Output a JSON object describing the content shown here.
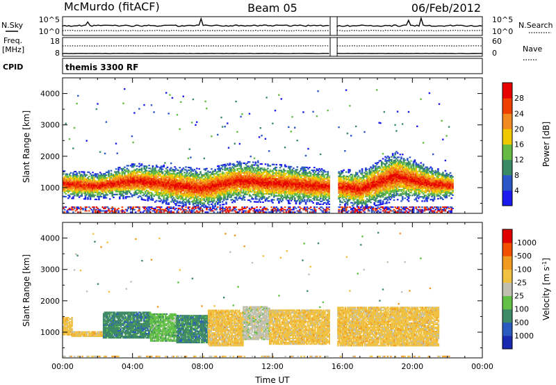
{
  "header": {
    "station": "McMurdo (fitACF)",
    "beam": "Beam 05",
    "date": "06/Feb/2012"
  },
  "top_panels": {
    "nsky_label": "N.Sky",
    "nsearch_label": "N.Search",
    "nsky_ticks": [
      "10^5",
      "10^0"
    ],
    "nsearch_ticks": [
      "10^5",
      "10^0"
    ],
    "freq_label_1": "Freq.",
    "freq_label_2": "[MHz]",
    "freq_ticks": [
      "18",
      "8"
    ],
    "nave_label": "Nave",
    "nave_ticks": [
      "60",
      "0"
    ],
    "cpid_label": "CPID",
    "cpid_value": "themis 3300 RF"
  },
  "chart_data": [
    {
      "type": "heatmap",
      "title": "",
      "xlabel": "Time UT",
      "ylabel": "Slant Range [km]",
      "x_ticks": [
        "00:00",
        "04:00",
        "08:00",
        "12:00",
        "16:00",
        "20:00",
        "00:00"
      ],
      "xlim": [
        0,
        24
      ],
      "y_ticks": [
        1000,
        2000,
        3000,
        4000
      ],
      "ylim": [
        180,
        4500
      ],
      "data_gap_hours": [
        15.3,
        15.7
      ],
      "colorbar": {
        "label": "Power [dB]",
        "ticks": [
          "4",
          "8",
          "12",
          "16",
          "20",
          "24",
          "28"
        ],
        "colors": [
          "#1a1aee",
          "#2a56c8",
          "#3a8a66",
          "#66bb44",
          "#f0c800",
          "#f08a20",
          "#f04000",
          "#e60000"
        ]
      },
      "main_echo_band": [
        {
          "t": 0.0,
          "r_lo": 900,
          "r_hi": 1300
        },
        {
          "t": 2.0,
          "r_lo": 850,
          "r_hi": 1200
        },
        {
          "t": 4.0,
          "r_lo": 900,
          "r_hi": 1500
        },
        {
          "t": 6.0,
          "r_lo": 700,
          "r_hi": 1450
        },
        {
          "t": 8.0,
          "r_lo": 550,
          "r_hi": 1350
        },
        {
          "t": 10.0,
          "r_lo": 800,
          "r_hi": 1600
        },
        {
          "t": 12.0,
          "r_lo": 750,
          "r_hi": 1500
        },
        {
          "t": 14.0,
          "r_lo": 700,
          "r_hi": 1400
        },
        {
          "t": 15.3,
          "r_lo": 700,
          "r_hi": 1300
        },
        {
          "t": 15.7,
          "r_lo": 700,
          "r_hi": 1300
        },
        {
          "t": 17.0,
          "r_lo": 550,
          "r_hi": 1300
        },
        {
          "t": 19.0,
          "r_lo": 800,
          "r_hi": 1900
        },
        {
          "t": 21.0,
          "r_lo": 800,
          "r_hi": 1400
        },
        {
          "t": 22.3,
          "r_lo": 900,
          "r_hi": 1200
        }
      ]
    },
    {
      "type": "heatmap",
      "title": "",
      "xlabel": "Time UT",
      "ylabel": "Slant Range [km]",
      "x_ticks": [
        "00:00",
        "04:00",
        "08:00",
        "12:00",
        "16:00",
        "20:00",
        "00:00"
      ],
      "xlim": [
        0,
        24
      ],
      "y_ticks": [
        1000,
        2000,
        3000,
        4000
      ],
      "ylim": [
        180,
        4500
      ],
      "colorbar": {
        "label": "Velocity [m s",
        "label_sup": "-1",
        "label_end": "]",
        "ticks": [
          "1000",
          "500",
          "100",
          "25",
          "-25",
          "-100",
          "-500",
          "-1000"
        ],
        "colors": [
          "#1a2ab0",
          "#2a5abf",
          "#3e8a66",
          "#62c046",
          "#c0c0b0",
          "#f0c040",
          "#f09a20",
          "#f05000",
          "#e00000"
        ]
      },
      "segments": [
        {
          "t0": 0.0,
          "t1": 0.5,
          "r_lo": 900,
          "r_hi": 1450,
          "class": "-100"
        },
        {
          "t0": 0.5,
          "t1": 2.3,
          "r_lo": 850,
          "r_hi": 1000,
          "class": "-100"
        },
        {
          "t0": 2.3,
          "t1": 5.0,
          "r_lo": 800,
          "r_hi": 1650,
          "class": "100"
        },
        {
          "t0": 5.0,
          "t1": 6.5,
          "r_lo": 700,
          "r_hi": 1600,
          "class": "25"
        },
        {
          "t0": 6.5,
          "t1": 8.3,
          "r_lo": 650,
          "r_hi": 1550,
          "class": "100"
        },
        {
          "t0": 8.3,
          "t1": 10.3,
          "r_lo": 550,
          "r_hi": 1700,
          "class": "-100"
        },
        {
          "t0": 10.3,
          "t1": 11.8,
          "r_lo": 750,
          "r_hi": 1800,
          "class": "-25"
        },
        {
          "t0": 11.8,
          "t1": 15.3,
          "r_lo": 600,
          "r_hi": 1700,
          "class": "-100"
        },
        {
          "t0": 15.7,
          "t1": 21.5,
          "r_lo": 550,
          "r_hi": 1800,
          "class": "-100"
        }
      ]
    }
  ]
}
